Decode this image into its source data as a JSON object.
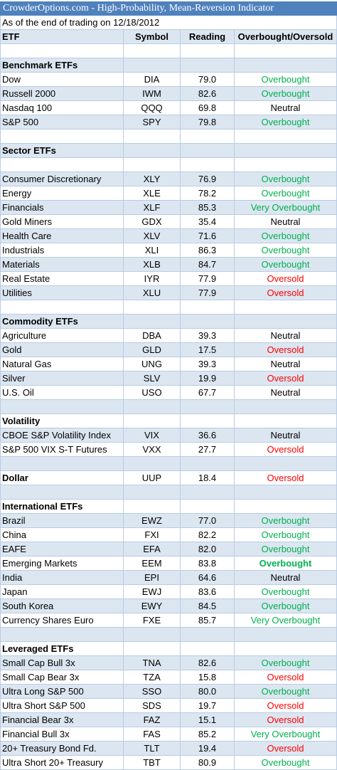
{
  "title": "CrowderOptions.com - High-Probability, Mean-Reversion Indicator",
  "subtitle": "As of the end of trading on 12/18/2012",
  "columns": [
    "ETF",
    "Symbol",
    "Reading",
    "Overbought/Oversold"
  ],
  "colors": {
    "title_bg": "#4f81bd",
    "band": "#dce6f1",
    "overbought": "#00b050",
    "oversold": "#ff0000",
    "grid": "#b8cce4"
  },
  "rows": [
    {
      "type": "blank"
    },
    {
      "type": "section",
      "name": "Benchmark ETFs"
    },
    {
      "type": "data",
      "name": "Dow",
      "symbol": "DIA",
      "reading": "79.0",
      "status": "Overbought"
    },
    {
      "type": "data",
      "name": "Russell 2000",
      "symbol": "IWM",
      "reading": "82.6",
      "status": "Overbought"
    },
    {
      "type": "data",
      "name": "Nasdaq 100",
      "symbol": "QQQ",
      "reading": "69.8",
      "status": "Neutral"
    },
    {
      "type": "data",
      "name": "S&P 500",
      "symbol": "SPY",
      "reading": "79.8",
      "status": "Overbought"
    },
    {
      "type": "blank"
    },
    {
      "type": "section",
      "name": "Sector ETFs"
    },
    {
      "type": "blank"
    },
    {
      "type": "data",
      "name": "Consumer Discretionary",
      "symbol": "XLY",
      "reading": "76.9",
      "status": "Overbought"
    },
    {
      "type": "data",
      "name": "Energy",
      "symbol": "XLE",
      "reading": "78.2",
      "status": "Overbought"
    },
    {
      "type": "data",
      "name": "Financials",
      "symbol": "XLF",
      "reading": "85.3",
      "status": "Very Overbought"
    },
    {
      "type": "data",
      "name": "Gold Miners",
      "symbol": "GDX",
      "reading": "35.4",
      "status": "Neutral"
    },
    {
      "type": "data",
      "name": "Health Care",
      "symbol": "XLV",
      "reading": "71.6",
      "status": "Overbought"
    },
    {
      "type": "data",
      "name": "Industrials",
      "symbol": "XLI",
      "reading": "86.3",
      "status": "Overbought"
    },
    {
      "type": "data",
      "name": "Materials",
      "symbol": "XLB",
      "reading": "84.7",
      "status": "Overbought"
    },
    {
      "type": "data",
      "name": "Real Estate",
      "symbol": "IYR",
      "reading": "77.9",
      "status": "Oversold"
    },
    {
      "type": "data",
      "name": "Utilities",
      "symbol": "XLU",
      "reading": "77.9",
      "status": "Oversold"
    },
    {
      "type": "blank"
    },
    {
      "type": "section",
      "name": "Commodity ETFs"
    },
    {
      "type": "data",
      "name": "Agriculture",
      "symbol": "DBA",
      "reading": "39.3",
      "status": "Neutral"
    },
    {
      "type": "data",
      "name": "Gold",
      "symbol": "GLD",
      "reading": "17.5",
      "status": "Oversold"
    },
    {
      "type": "data",
      "name": "Natural Gas",
      "symbol": "UNG",
      "reading": "39.3",
      "status": "Neutral"
    },
    {
      "type": "data",
      "name": "Silver",
      "symbol": "SLV",
      "reading": "19.9",
      "status": "Oversold"
    },
    {
      "type": "data",
      "name": "U.S. Oil",
      "symbol": "USO",
      "reading": "67.7",
      "status": "Neutral"
    },
    {
      "type": "blank"
    },
    {
      "type": "section",
      "name": "Volatility"
    },
    {
      "type": "data",
      "name": "CBOE S&P Volatility Index",
      "symbol": "VIX",
      "reading": "36.6",
      "status": "Neutral"
    },
    {
      "type": "data",
      "name": "S&P 500 VIX S-T Futures",
      "symbol": "VXX",
      "reading": "27.7",
      "status": "Oversold"
    },
    {
      "type": "blank"
    },
    {
      "type": "data",
      "name": "Dollar",
      "symbol": "UUP",
      "reading": "18.4",
      "status": "Oversold",
      "name_bold": true
    },
    {
      "type": "blank"
    },
    {
      "type": "section",
      "name": "International ETFs"
    },
    {
      "type": "data",
      "name": "Brazil",
      "symbol": "EWZ",
      "reading": "77.0",
      "status": "Overbought"
    },
    {
      "type": "data",
      "name": "China",
      "symbol": "FXI",
      "reading": "82.2",
      "status": "Overbought"
    },
    {
      "type": "data",
      "name": "EAFE",
      "symbol": "EFA",
      "reading": "82.0",
      "status": "Overbought"
    },
    {
      "type": "data",
      "name": "Emerging Markets",
      "symbol": "EEM",
      "reading": "83.8",
      "status": "Overbought",
      "status_bold": true
    },
    {
      "type": "data",
      "name": "India",
      "symbol": "EPI",
      "reading": "64.6",
      "status": "Neutral"
    },
    {
      "type": "data",
      "name": "Japan",
      "symbol": "EWJ",
      "reading": "83.6",
      "status": "Overbought"
    },
    {
      "type": "data",
      "name": "South Korea",
      "symbol": "EWY",
      "reading": "84.5",
      "status": "Overbought"
    },
    {
      "type": "data",
      "name": "Currency Shares Euro",
      "symbol": "FXE",
      "reading": "85.7",
      "status": "Very Overbought"
    },
    {
      "type": "blank"
    },
    {
      "type": "section",
      "name": "Leveraged ETFs"
    },
    {
      "type": "data",
      "name": "Small Cap Bull 3x",
      "symbol": "TNA",
      "reading": "82.6",
      "status": "Overbought"
    },
    {
      "type": "data",
      "name": "Small Cap Bear 3x",
      "symbol": "TZA",
      "reading": "15.8",
      "status": "Oversold"
    },
    {
      "type": "data",
      "name": "Ultra Long S&P 500",
      "symbol": "SSO",
      "reading": "80.0",
      "status": "Overbought"
    },
    {
      "type": "data",
      "name": "Ultra Short S&P 500",
      "symbol": "SDS",
      "reading": "19.7",
      "status": "Oversold"
    },
    {
      "type": "data",
      "name": "Financial Bear 3x",
      "symbol": "FAZ",
      "reading": "15.1",
      "status": "Oversold"
    },
    {
      "type": "data",
      "name": "Financial Bull 3x",
      "symbol": "FAS",
      "reading": "85.2",
      "status": "Very Overbought"
    },
    {
      "type": "data",
      "name": "20+ Treasury Bond Fd.",
      "symbol": "TLT",
      "reading": "19.4",
      "status": "Oversold"
    },
    {
      "type": "data",
      "name": "Ultra Short 20+ Treasury",
      "symbol": "TBT",
      "reading": "80.9",
      "status": "Overbought"
    }
  ]
}
